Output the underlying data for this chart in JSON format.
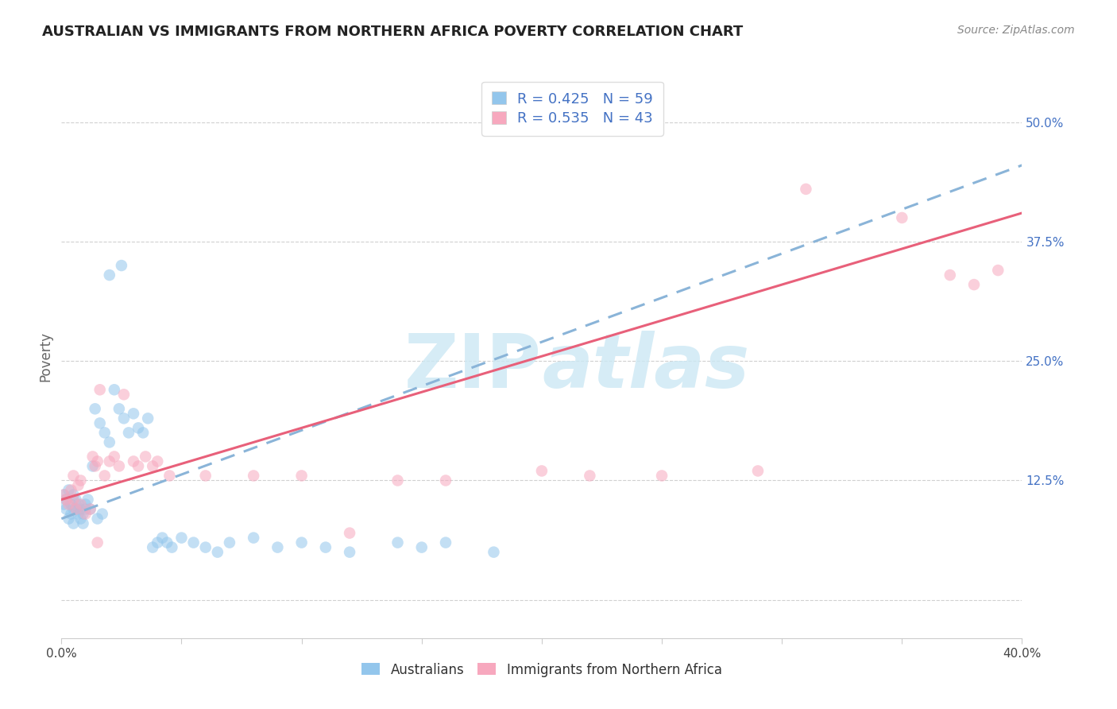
{
  "title": "AUSTRALIAN VS IMMIGRANTS FROM NORTHERN AFRICA POVERTY CORRELATION CHART",
  "source": "Source: ZipAtlas.com",
  "ylabel": "Poverty",
  "x_min": 0.0,
  "x_max": 0.4,
  "y_min": -0.04,
  "y_max": 0.55,
  "y_ticks": [
    0.0,
    0.125,
    0.25,
    0.375,
    0.5
  ],
  "y_tick_labels": [
    "",
    "12.5%",
    "25.0%",
    "37.5%",
    "50.0%"
  ],
  "grid_color": "#d0d0d0",
  "background_color": "#ffffff",
  "watermark_color": "#cce8f4",
  "australians_color": "#93c6ec",
  "immigrants_color": "#f7a8be",
  "australians_R": 0.425,
  "australians_N": 59,
  "immigrants_R": 0.535,
  "immigrants_N": 43,
  "legend_color": "#4472c4",
  "aus_line_color": "#8ab4d8",
  "imm_line_color": "#e8607a",
  "scatter_alpha": 0.55,
  "scatter_size": 110,
  "australians_x": [
    0.001,
    0.001,
    0.002,
    0.002,
    0.003,
    0.003,
    0.004,
    0.004,
    0.005,
    0.005,
    0.005,
    0.006,
    0.006,
    0.007,
    0.007,
    0.008,
    0.008,
    0.009,
    0.009,
    0.01,
    0.01,
    0.011,
    0.012,
    0.013,
    0.014,
    0.015,
    0.016,
    0.017,
    0.018,
    0.02,
    0.022,
    0.024,
    0.026,
    0.028,
    0.03,
    0.032,
    0.034,
    0.036,
    0.038,
    0.04,
    0.042,
    0.044,
    0.046,
    0.05,
    0.055,
    0.06,
    0.065,
    0.07,
    0.08,
    0.09,
    0.1,
    0.11,
    0.12,
    0.14,
    0.15,
    0.16,
    0.18,
    0.02,
    0.025
  ],
  "australians_y": [
    0.1,
    0.11,
    0.095,
    0.105,
    0.085,
    0.115,
    0.09,
    0.1,
    0.095,
    0.08,
    0.11,
    0.095,
    0.105,
    0.09,
    0.1,
    0.085,
    0.095,
    0.09,
    0.08,
    0.095,
    0.1,
    0.105,
    0.095,
    0.14,
    0.2,
    0.085,
    0.185,
    0.09,
    0.175,
    0.165,
    0.22,
    0.2,
    0.19,
    0.175,
    0.195,
    0.18,
    0.175,
    0.19,
    0.055,
    0.06,
    0.065,
    0.06,
    0.055,
    0.065,
    0.06,
    0.055,
    0.05,
    0.06,
    0.065,
    0.055,
    0.06,
    0.055,
    0.05,
    0.06,
    0.055,
    0.06,
    0.05,
    0.34,
    0.35
  ],
  "immigrants_x": [
    0.001,
    0.002,
    0.003,
    0.004,
    0.005,
    0.006,
    0.007,
    0.008,
    0.01,
    0.012,
    0.013,
    0.014,
    0.015,
    0.016,
    0.018,
    0.02,
    0.022,
    0.024,
    0.026,
    0.03,
    0.032,
    0.035,
    0.038,
    0.04,
    0.045,
    0.06,
    0.08,
    0.1,
    0.12,
    0.14,
    0.16,
    0.2,
    0.22,
    0.25,
    0.29,
    0.31,
    0.35,
    0.37,
    0.38,
    0.39,
    0.005,
    0.008,
    0.015
  ],
  "immigrants_y": [
    0.11,
    0.105,
    0.1,
    0.115,
    0.105,
    0.095,
    0.12,
    0.1,
    0.09,
    0.095,
    0.15,
    0.14,
    0.145,
    0.22,
    0.13,
    0.145,
    0.15,
    0.14,
    0.215,
    0.145,
    0.14,
    0.15,
    0.14,
    0.145,
    0.13,
    0.13,
    0.13,
    0.13,
    0.07,
    0.125,
    0.125,
    0.135,
    0.13,
    0.13,
    0.135,
    0.43,
    0.4,
    0.34,
    0.33,
    0.345,
    0.13,
    0.125,
    0.06
  ],
  "aus_line_x": [
    0.0,
    0.4
  ],
  "aus_line_y": [
    0.085,
    0.455
  ],
  "imm_line_x": [
    0.0,
    0.4
  ],
  "imm_line_y": [
    0.105,
    0.405
  ]
}
